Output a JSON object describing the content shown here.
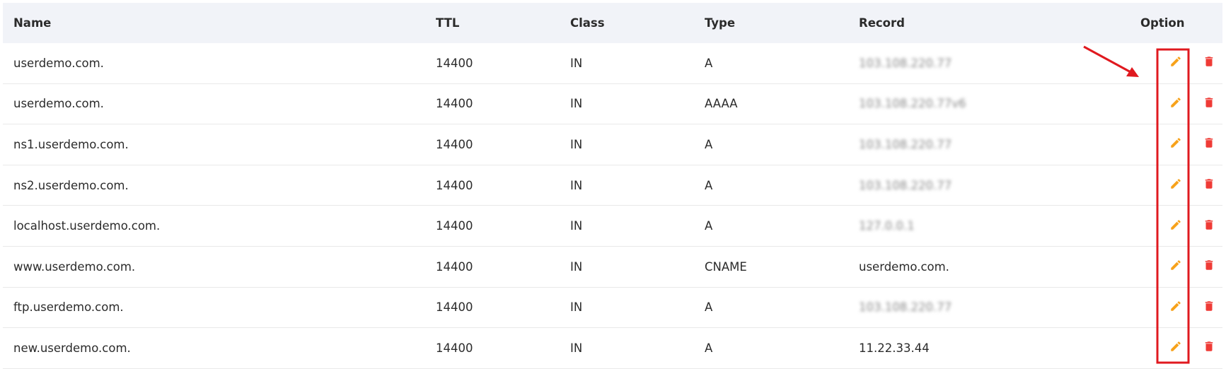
{
  "table": {
    "headers": [
      "Name",
      "TTL",
      "Class",
      "Type",
      "Record",
      "Option"
    ],
    "rows": [
      [
        "userdemo.com.",
        "14400",
        "IN",
        "A",
        "103.108.220.77"
      ],
      [
        "userdemo.com.",
        "14400",
        "IN",
        "AAAA",
        "103.108.220.77v6"
      ],
      [
        "ns1.userdemo.com.",
        "14400",
        "IN",
        "A",
        "103.108.220.77"
      ],
      [
        "ns2.userdemo.com.",
        "14400",
        "IN",
        "A",
        "103.108.220.77"
      ],
      [
        "localhost.userdemo.com.",
        "14400",
        "IN",
        "A",
        "127.0.0.1"
      ],
      [
        "www.userdemo.com.",
        "14400",
        "IN",
        "CNAME",
        "userdemo.com."
      ],
      [
        "ftp.userdemo.com.",
        "14400",
        "IN",
        "A",
        "103.108.220.77"
      ],
      [
        "new.userdemo.com.",
        "14400",
        "IN",
        "A",
        "11.22.33.44"
      ]
    ],
    "blurred": [
      true,
      true,
      true,
      true,
      true,
      false,
      true,
      false
    ]
  }
}
